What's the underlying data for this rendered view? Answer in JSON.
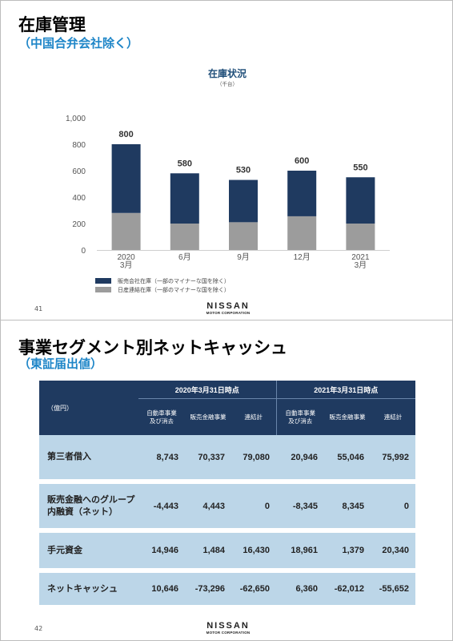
{
  "slide1": {
    "title": "在庫管理",
    "subtitle": "（中国合弁会社除く）",
    "chart_title": "在庫状況",
    "chart_unit": "（千台）",
    "page_number": "41",
    "logo": {
      "main": "NISSAN",
      "sub": "MOTOR CORPORATION"
    }
  },
  "slide2": {
    "title": "事業セグメント別ネットキャッシュ",
    "subtitle": "（東証届出値）",
    "page_number": "42",
    "logo": {
      "main": "NISSAN",
      "sub": "MOTOR CORPORATION"
    },
    "table": {
      "unit_label": "（億円）",
      "period_headers": [
        "2020年3月31日時点",
        "2021年3月31日時点"
      ],
      "sub_headers": [
        [
          "自動車事業",
          "及び消去"
        ],
        [
          "販売金融事業"
        ],
        [
          "連結計"
        ],
        [
          "自動車事業",
          "及び消去"
        ],
        [
          "販売金融事業"
        ],
        [
          "連結計"
        ]
      ],
      "rows": [
        {
          "label": [
            "第三者借入"
          ],
          "values": [
            "8,743",
            "70,337",
            "79,080",
            "20,946",
            "55,046",
            "75,992"
          ]
        },
        {
          "label": [
            "販売金融へのグループ",
            "内融資（ネット）"
          ],
          "values": [
            "-4,443",
            "4,443",
            "0",
            "-8,345",
            "8,345",
            "0"
          ]
        },
        {
          "label": [
            "手元資金"
          ],
          "values": [
            "14,946",
            "1,484",
            "16,430",
            "18,961",
            "1,379",
            "20,340"
          ]
        },
        {
          "label": [
            "ネットキャッシュ"
          ],
          "values": [
            "10,646",
            "-73,296",
            "-62,650",
            "6,360",
            "-62,012",
            "-55,652"
          ]
        }
      ]
    }
  },
  "chart_data": {
    "type": "bar",
    "stacked": true,
    "title": "在庫状況",
    "unit": "（千台）",
    "categories": [
      [
        "2020",
        "3月"
      ],
      [
        "6月"
      ],
      [
        "9月"
      ],
      [
        "12月"
      ],
      [
        "2021",
        "3月"
      ]
    ],
    "series": [
      {
        "name": "販売会社在庫（一部のマイナーな国を除く）",
        "color": "#1f3a60",
        "values": [
          520,
          380,
          320,
          345,
          350
        ]
      },
      {
        "name": "日産連結在庫（一部のマイナーな国を除く）",
        "color": "#9c9c9c",
        "values": [
          280,
          200,
          210,
          255,
          200
        ]
      }
    ],
    "totals": [
      "800",
      "580",
      "530",
      "600",
      "550"
    ],
    "y_ticks": [
      "0",
      "200",
      "400",
      "600",
      "800",
      "1,000"
    ],
    "ylim": [
      0,
      1000
    ],
    "legend_position": "bottom-left",
    "grid": false
  }
}
